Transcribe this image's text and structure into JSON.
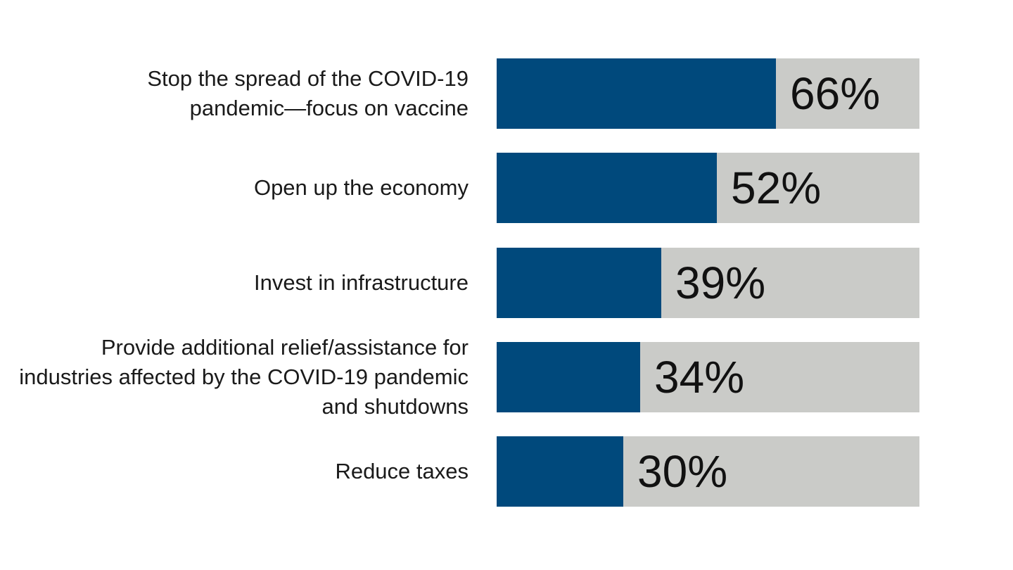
{
  "chart_data": {
    "type": "bar",
    "orientation": "horizontal",
    "categories": [
      "Stop the spread of the COVID-19 pandemic—focus on vaccine",
      "Open up the economy",
      "Invest in infrastructure",
      "Provide additional relief/assistance for industries affected by the COVID-19 pandemic and shutdowns",
      "Reduce taxes"
    ],
    "values": [
      66,
      52,
      39,
      34,
      30
    ],
    "value_labels": [
      "66%",
      "52%",
      "39%",
      "34%",
      "30%"
    ],
    "xlim": [
      0,
      100
    ],
    "title": "",
    "xlabel": "",
    "ylabel": "",
    "grid": false,
    "legend": "none",
    "colors": {
      "bar": "#00497c",
      "track": "#cacbc8",
      "label_text": "#1a1a1a"
    }
  }
}
